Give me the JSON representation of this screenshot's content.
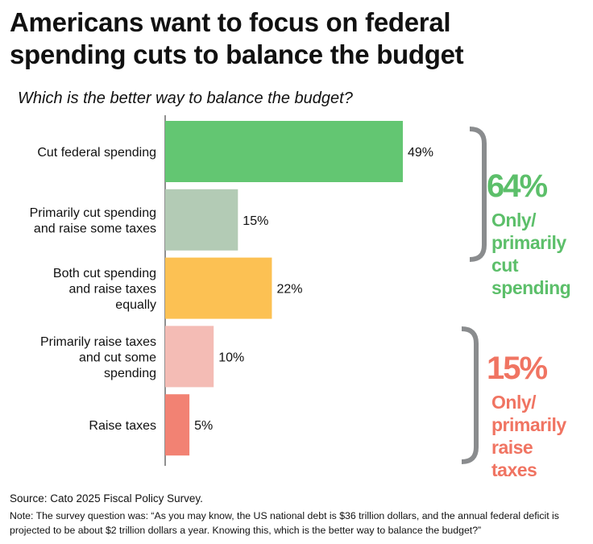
{
  "title_lines": [
    "Americans want to focus on federal",
    "spending cuts to balance the budget"
  ],
  "subtitle": "Which is the better way to balance the budget?",
  "chart_data": {
    "type": "bar",
    "orientation": "horizontal",
    "categories": [
      [
        "Cut federal spending"
      ],
      [
        "Primarily cut spending",
        "and raise some taxes"
      ],
      [
        "Both cut spending",
        "and raise taxes",
        "equally"
      ],
      [
        "Primarily raise taxes",
        "and cut some",
        "spending"
      ],
      [
        "Raise taxes"
      ]
    ],
    "values": [
      49,
      15,
      22,
      10,
      5
    ],
    "data_labels": [
      "49%",
      "15%",
      "22%",
      "10%",
      "5%"
    ],
    "colors": [
      "#63c672",
      "#b3cbb5",
      "#fcc153",
      "#f4bcb5",
      "#f28273"
    ],
    "xlim": [
      0,
      100
    ],
    "grid": false,
    "annotations": [
      {
        "value": "64%",
        "label_lines": [
          "Only/",
          "primarily",
          "cut",
          "spending"
        ],
        "color": "#5cbf6a",
        "groups": [
          0,
          1
        ]
      },
      {
        "value": "15%",
        "label_lines": [
          "Only/",
          "primarily",
          "raise",
          "taxes"
        ],
        "color": "#f07462",
        "groups": [
          3,
          4
        ]
      }
    ],
    "bracket_color": "#8a8c8e"
  },
  "source": "Source: Cato 2025 Fiscal Policy Survey.",
  "note": "Note: The survey question was: “As you may know, the US national debt is $36 trillion dollars, and the annual federal deficit is projected to be about $2 trillion dollars a year. Knowing this, which is the better way to balance the budget?”"
}
